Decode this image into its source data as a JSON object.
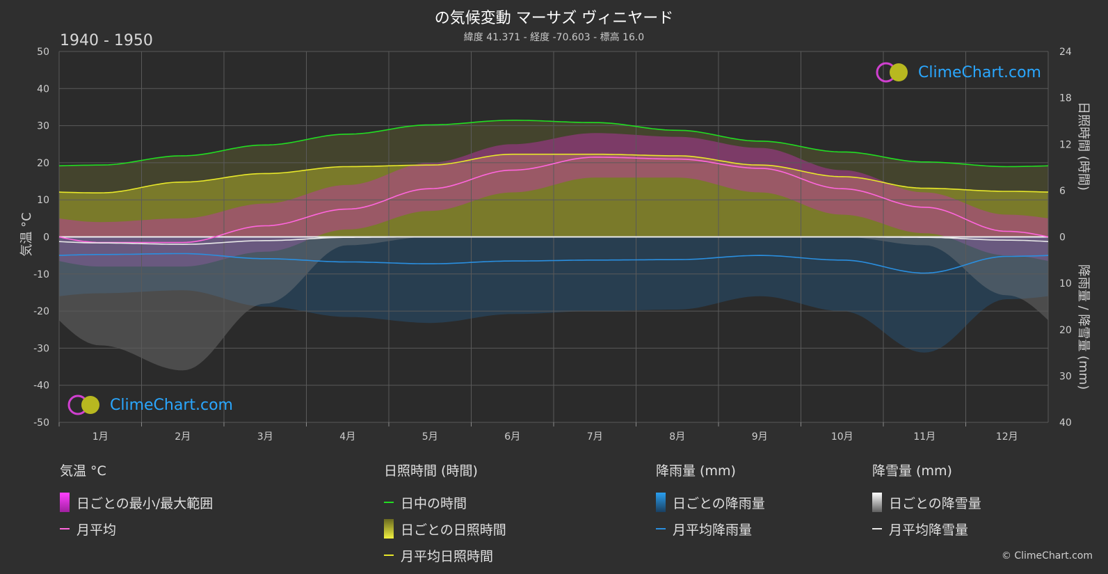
{
  "title": "の気候変動 マーサズ ヴィニヤード",
  "subtitle": "緯度 41.371 - 経度 -70.603 - 標高 16.0",
  "period": "1940 - 1950",
  "logo_text": "ClimeChart.com",
  "copyright": "© ClimeChart.com",
  "colors": {
    "background": "#2f2f2f",
    "daylight": "#22dd22",
    "sunshine_mean": "#e8e82a",
    "sunshine_band": "#8c8c2a",
    "temp_mean": "#ff66dd",
    "temp_band": "#c030b0",
    "rain_mean": "#2a8fe0",
    "rain_band": "#1f6fb0",
    "snow_mean": "#e8e8e8",
    "snow_band": "#8a8a8a"
  },
  "legend": {
    "temperature": {
      "title": "気温 °C",
      "range": "日ごとの最小/最大範囲",
      "mean": "月平均"
    },
    "sunshine": {
      "title": "日照時間 (時間)",
      "daylight": "日中の時間",
      "daily": "日ごとの日照時間",
      "mean": "月平均日照時間"
    },
    "rain": {
      "title": "降雨量 (mm)",
      "daily": "日ごとの降雨量",
      "mean": "月平均降雨量"
    },
    "snow": {
      "title": "降雪量 (mm)",
      "daily": "日ごとの降雪量",
      "mean": "月平均降雪量"
    }
  },
  "chart_data": {
    "type": "line",
    "x": [
      "1月",
      "2月",
      "3月",
      "4月",
      "5月",
      "6月",
      "7月",
      "8月",
      "9月",
      "10月",
      "11月",
      "12月"
    ],
    "left_axis": {
      "label": "気温 °C",
      "range": [
        -50,
        50
      ],
      "ticks": [
        50,
        40,
        30,
        20,
        10,
        0,
        -10,
        -20,
        -30,
        -40,
        -50
      ]
    },
    "right_axis_top": {
      "label": "日照時間 (時間)",
      "range": [
        0,
        24
      ],
      "ticks": [
        24,
        18,
        12,
        6,
        0
      ]
    },
    "right_axis_bottom": {
      "label": "降雨量 / 降雪量 (mm)",
      "range": [
        0,
        40
      ],
      "ticks": [
        0,
        10,
        20,
        30,
        40
      ]
    },
    "grid": true,
    "series": [
      {
        "name": "日中の時間",
        "axis": "sunshine_hours",
        "values": [
          9.3,
          10.5,
          11.9,
          13.3,
          14.5,
          15.1,
          14.8,
          13.8,
          12.4,
          11.0,
          9.7,
          9.1
        ]
      },
      {
        "name": "月平均日照時間",
        "axis": "sunshine_hours",
        "values": [
          5.7,
          7.1,
          8.2,
          9.1,
          9.3,
          10.7,
          10.7,
          10.5,
          9.3,
          7.8,
          6.3,
          5.9
        ]
      },
      {
        "name": "月平均",
        "axis": "temperature_c",
        "values": [
          -1.5,
          -1.5,
          3.0,
          7.5,
          13.0,
          18.0,
          21.5,
          21.0,
          18.5,
          13.0,
          8.0,
          1.5
        ]
      },
      {
        "name": "月平均降雨量",
        "axis": "precip_mm",
        "values": [
          3.8,
          3.6,
          4.7,
          5.4,
          5.8,
          5.2,
          5.0,
          4.9,
          4.0,
          5.0,
          7.8,
          4.2
        ]
      },
      {
        "name": "月平均降雪量",
        "axis": "precip_mm",
        "values": [
          1.3,
          1.6,
          0.8,
          0.1,
          0,
          0,
          0,
          0,
          0,
          0,
          0.1,
          0.7
        ]
      }
    ],
    "temperature_daily_range": {
      "min": [
        -8,
        -8,
        -4,
        2,
        7,
        12,
        16,
        16,
        12,
        6,
        1,
        -5
      ],
      "max": [
        4,
        5,
        9,
        14,
        20,
        25,
        28,
        27,
        24,
        18,
        12,
        6
      ]
    }
  }
}
